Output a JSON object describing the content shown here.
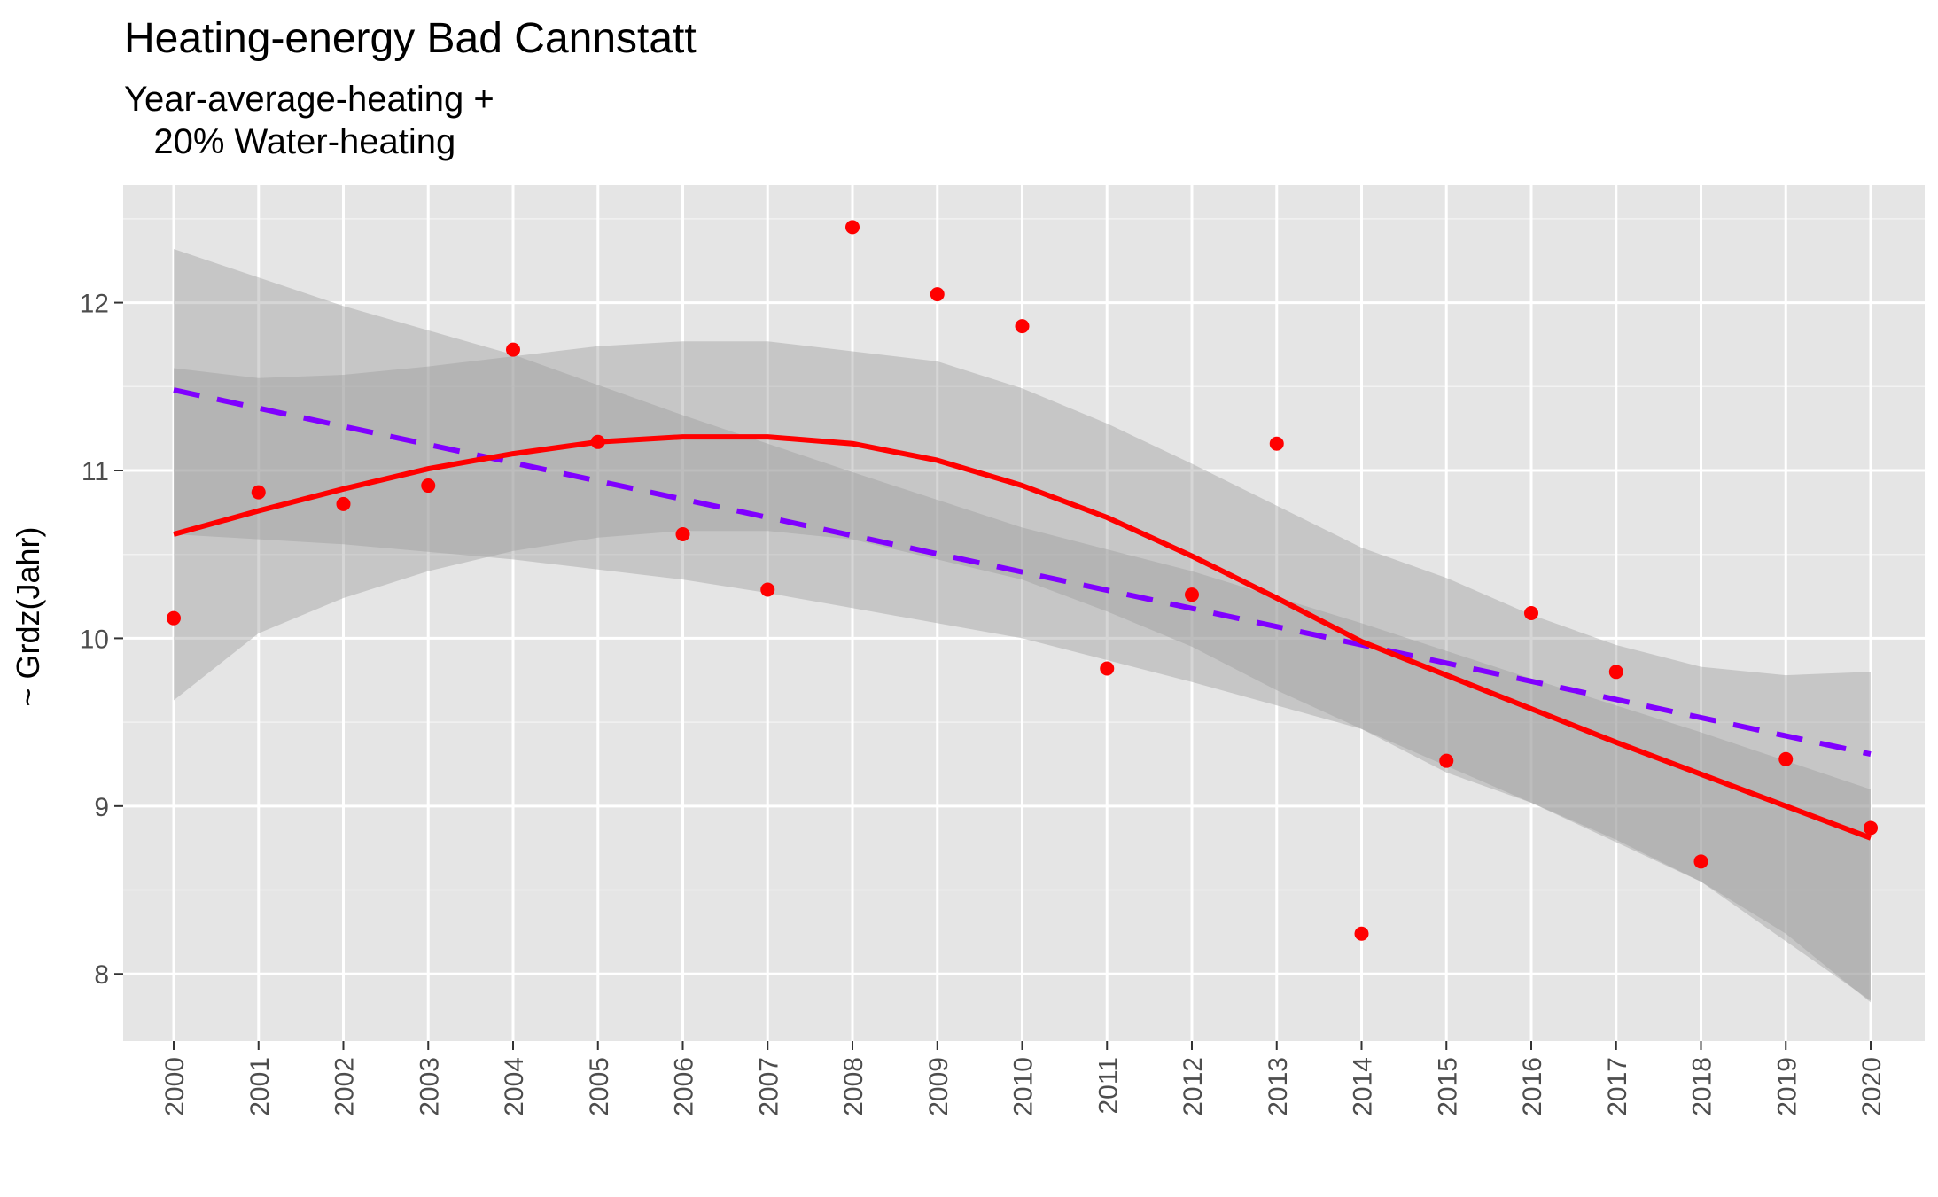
{
  "chart_data": {
    "type": "scatter",
    "title": "Heating-energy Bad Cannstatt",
    "subtitle": "Year-average-heating +\n   20% Water-heating",
    "xlabel": "",
    "ylabel": "~ Grdz(Jahr)",
    "x_categories": [
      "2000",
      "2001",
      "2002",
      "2003",
      "2004",
      "2005",
      "2006",
      "2007",
      "2008",
      "2009",
      "2010",
      "2011",
      "2012",
      "2013",
      "2014",
      "2015",
      "2016",
      "2017",
      "2018",
      "2019",
      "2020"
    ],
    "y_ticks": [
      8,
      9,
      10,
      11,
      12
    ],
    "ylim": [
      7.6,
      12.7
    ],
    "grid": true,
    "points": {
      "color": "#ff0000",
      "x": [
        2000,
        2001,
        2002,
        2003,
        2004,
        2005,
        2006,
        2007,
        2008,
        2009,
        2010,
        2011,
        2012,
        2013,
        2014,
        2015,
        2016,
        2017,
        2018,
        2019,
        2020
      ],
      "y": [
        10.12,
        10.87,
        10.8,
        10.91,
        11.72,
        11.17,
        10.62,
        10.29,
        12.45,
        12.05,
        11.86,
        9.82,
        10.26,
        11.16,
        8.24,
        9.27,
        10.15,
        9.8,
        8.67,
        9.28,
        8.87
      ]
    },
    "series": [
      {
        "type": "line",
        "style": "dashed",
        "color": "#8000ff",
        "x": [
          2000,
          2020
        ],
        "y": [
          11.48,
          9.31
        ],
        "band": {
          "x": [
            2000,
            2002,
            2004,
            2006,
            2007,
            2008,
            2010,
            2012,
            2014,
            2016,
            2018,
            2020
          ],
          "lower": [
            10.62,
            10.56,
            10.47,
            10.35,
            10.27,
            10.18,
            10.0,
            9.74,
            9.46,
            9.02,
            8.55,
            7.84
          ],
          "upper": [
            12.32,
            11.98,
            11.69,
            11.33,
            11.16,
            10.99,
            10.66,
            10.4,
            10.09,
            9.76,
            9.44,
            9.1
          ]
        }
      },
      {
        "type": "line",
        "style": "solid",
        "color": "#ff0000",
        "x": [
          2000,
          2001,
          2002,
          2003,
          2004,
          2005,
          2006,
          2007,
          2008,
          2009,
          2010,
          2011,
          2012,
          2013,
          2014,
          2015,
          2016,
          2017,
          2018,
          2019,
          2020
        ],
        "y": [
          10.62,
          10.76,
          10.89,
          11.01,
          11.1,
          11.17,
          11.2,
          11.2,
          11.16,
          11.06,
          10.91,
          10.72,
          10.49,
          10.24,
          9.98,
          9.78,
          9.58,
          9.38,
          9.19,
          9.0,
          8.81
        ],
        "band": {
          "x": [
            2000,
            2001,
            2002,
            2003,
            2004,
            2005,
            2006,
            2007,
            2008,
            2009,
            2010,
            2011,
            2012,
            2013,
            2014,
            2015,
            2016,
            2017,
            2018,
            2019,
            2020
          ],
          "lower": [
            9.63,
            10.03,
            10.24,
            10.4,
            10.52,
            10.6,
            10.64,
            10.64,
            10.59,
            10.47,
            10.35,
            10.16,
            9.95,
            9.69,
            9.46,
            9.2,
            9.02,
            8.8,
            8.55,
            8.24,
            7.83
          ],
          "upper": [
            11.61,
            11.55,
            11.57,
            11.62,
            11.68,
            11.74,
            11.77,
            11.77,
            11.71,
            11.65,
            11.49,
            11.28,
            11.04,
            10.79,
            10.54,
            10.36,
            10.14,
            9.96,
            9.83,
            9.78,
            9.8
          ]
        }
      }
    ]
  }
}
